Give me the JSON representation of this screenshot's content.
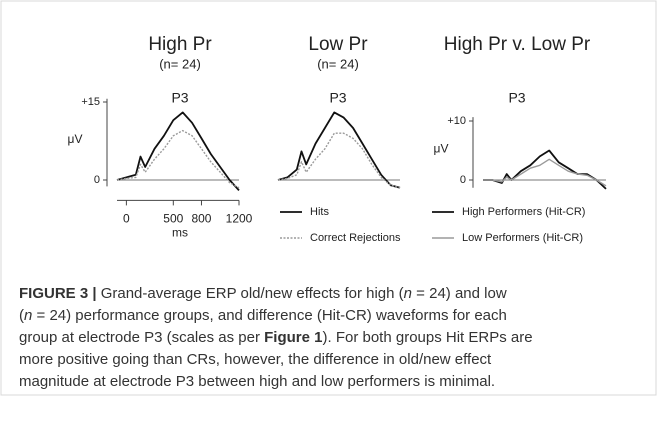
{
  "chart_data": [
    {
      "type": "line",
      "title": "High Pr",
      "subtitle": "(n= 24)",
      "annotation": "P3",
      "ylabel": "μV",
      "xlabel": "ms",
      "x": [
        -100,
        0,
        100,
        150,
        200,
        300,
        400,
        500,
        600,
        700,
        800,
        900,
        1000,
        1100,
        1200
      ],
      "xlim": [
        -100,
        1200
      ],
      "xticks": [
        0,
        500,
        800,
        1200
      ],
      "ylim": [
        -2,
        16
      ],
      "yticks": [
        0,
        {
          "value": 15,
          "label": "+15"
        }
      ],
      "series": [
        {
          "color": "#111111",
          "style": "solid",
          "values": [
            0,
            0.5,
            1,
            4.5,
            2.5,
            6,
            8.5,
            11.5,
            13,
            11,
            8,
            5,
            2.5,
            0,
            -2
          ]
        },
        {
          "color": "#9a9a9a",
          "style": "dotted",
          "values": [
            0,
            0.3,
            0.5,
            3,
            1.5,
            4,
            6,
            8.5,
            9.5,
            8.5,
            6,
            3.5,
            1.5,
            -0.5,
            -1.5
          ]
        }
      ]
    },
    {
      "type": "line",
      "title": "Low Pr",
      "subtitle": "(n= 24)",
      "annotation": "P3",
      "x": [
        -100,
        0,
        100,
        150,
        200,
        300,
        400,
        500,
        600,
        700,
        800,
        900,
        1000,
        1100,
        1200
      ],
      "xlim": [
        -100,
        1200
      ],
      "ylim": [
        -2,
        16
      ],
      "series": [
        {
          "name": "Hits",
          "color": "#111111",
          "style": "solid",
          "values": [
            0,
            0.5,
            2,
            5.5,
            3,
            7,
            10,
            13,
            12,
            10,
            7,
            4,
            1,
            -1,
            -1.5
          ]
        },
        {
          "name": "Correct Rejections",
          "color": "#9a9a9a",
          "style": "dotted",
          "values": [
            0,
            0.3,
            1,
            3.5,
            1.5,
            4,
            6,
            9,
            9,
            8,
            6,
            3,
            0.5,
            -1,
            -1.5
          ]
        }
      ]
    },
    {
      "type": "line",
      "title": "High Pr v. Low Pr",
      "annotation": "P3",
      "ylabel": "μV",
      "x": [
        -100,
        0,
        100,
        150,
        200,
        300,
        400,
        500,
        600,
        700,
        800,
        900,
        1000,
        1100,
        1200
      ],
      "xlim": [
        -100,
        1200
      ],
      "ylim": [
        -2,
        11
      ],
      "yticks": [
        0,
        {
          "value": 10,
          "label": "+10"
        }
      ],
      "series": [
        {
          "name": "High Performers (Hit-CR)",
          "color": "#111111",
          "style": "solid",
          "values": [
            0,
            0,
            -0.5,
            1,
            0,
            1.5,
            2.5,
            4,
            5,
            3,
            2,
            1,
            1,
            0,
            -1.5
          ]
        },
        {
          "name": "Low Performers (Hit-CR)",
          "color": "#9a9a9a",
          "style": "solid",
          "values": [
            0,
            0,
            -0.3,
            0.5,
            0,
            1,
            2,
            2.5,
            3.5,
            2.5,
            1.5,
            1,
            0.8,
            0,
            -1
          ]
        }
      ]
    }
  ],
  "caption": {
    "lines": [
      [
        "FIGURE 3 |",
        " Grand-average ERP old/new effects for high (",
        "n",
        " = 24) and low"
      ],
      [
        "(",
        "n",
        " = 24) performance groups, and difference (Hit-CR) waveforms for each"
      ],
      [
        "group at electrode P3 (scales as per ",
        "Figure 1",
        "). For both groups Hit ERPs are"
      ],
      [
        "more positive going than CRs, however, the difference in old/new effect"
      ],
      [
        "magnitude at electrode P3 between high and low performers is minimal."
      ]
    ]
  }
}
